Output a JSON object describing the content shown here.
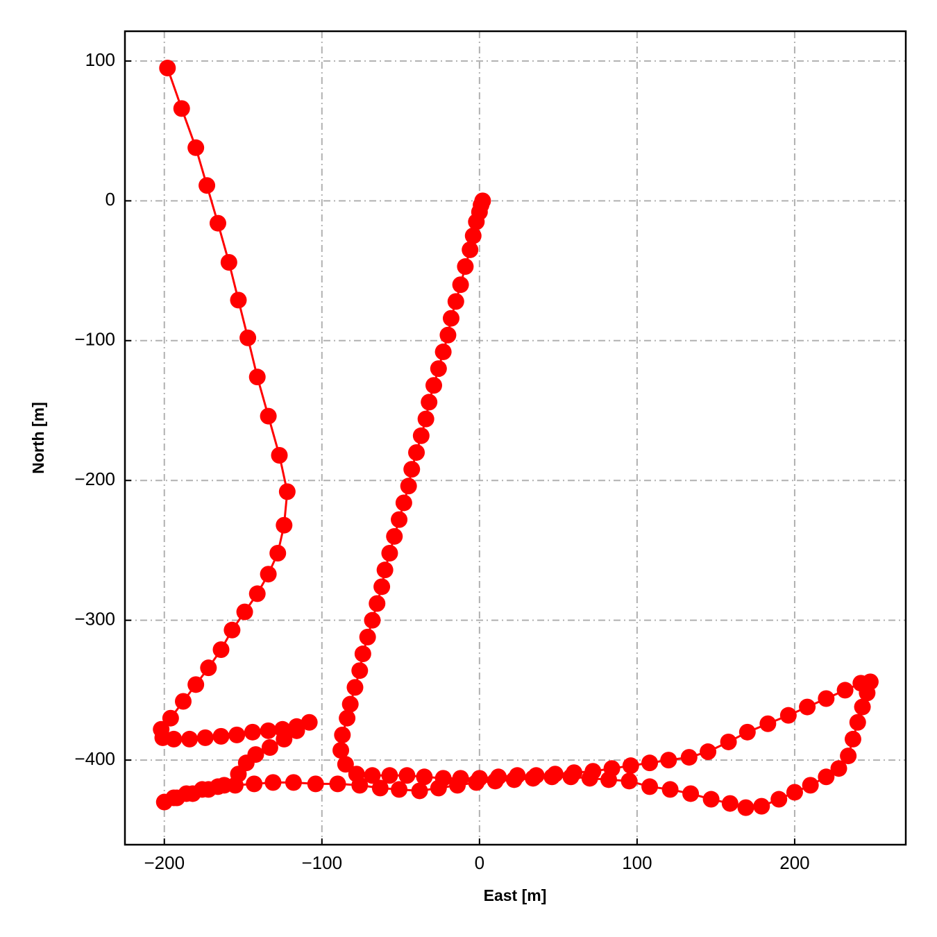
{
  "chart_data": {
    "type": "line",
    "x_label": "East [m]",
    "y_label": "North [m]",
    "color": "#ff0000",
    "markers": true,
    "grid": true,
    "xlim": [
      -225,
      270.5
    ],
    "ylim": [
      -460.5,
      121.3
    ],
    "xticks": [
      {
        "value": -200,
        "label": "−200"
      },
      {
        "value": -100,
        "label": "−100"
      },
      0,
      100,
      200
    ],
    "yticks": [
      100,
      0,
      {
        "value": -100,
        "label": "−100"
      },
      {
        "value": -200,
        "label": "−200"
      },
      {
        "value": -300,
        "label": "−300"
      },
      {
        "value": -400,
        "label": "−400"
      }
    ],
    "x": [
      2,
      1,
      0,
      -2,
      -4,
      -6,
      -9,
      -12,
      -15,
      -18,
      -20,
      -23,
      -26,
      -29,
      -32,
      -34,
      -37,
      -40,
      -43,
      -45,
      -48,
      -51,
      -54,
      -57,
      -60,
      -62,
      -65,
      -68,
      -71,
      -74,
      -76,
      -79,
      -82,
      -84,
      -87,
      -88,
      -85,
      -78,
      -68,
      -57,
      -46,
      -35,
      -23,
      -12,
      0,
      12,
      24,
      36,
      48,
      60,
      72,
      84,
      96,
      108,
      120,
      133,
      145,
      158,
      170,
      183,
      196,
      208,
      220,
      232,
      242,
      248,
      246,
      243,
      240,
      237,
      234,
      228,
      220,
      210,
      200,
      190,
      179,
      169,
      159,
      147,
      134,
      121,
      108,
      95,
      82,
      70,
      58,
      46,
      34,
      22,
      10,
      -2,
      -14,
      -26,
      -38,
      -51,
      -63,
      -76,
      -90,
      -104,
      -118,
      -131,
      -143,
      -155,
      -166,
      -176,
      -186,
      -194,
      -200,
      -192,
      -182,
      -172,
      -162,
      -153,
      -148,
      -142,
      -133,
      -124,
      -116,
      -108,
      -116,
      -125,
      -134,
      -144,
      -154,
      -164,
      -174,
      -184,
      -194,
      -201,
      -202,
      -196,
      -188,
      -180,
      -172,
      -164,
      -157,
      -149,
      -141,
      -134,
      -128,
      -124,
      -122,
      -127,
      -134,
      -141,
      -147,
      -153,
      -159,
      -166,
      -173,
      -180,
      -189,
      -198
    ],
    "values": [
      0,
      -3,
      -8,
      -15,
      -25,
      -35,
      -47,
      -60,
      -72,
      -84,
      -96,
      -108,
      -120,
      -132,
      -144,
      -156,
      -168,
      -180,
      -192,
      -204,
      -216,
      -228,
      -240,
      -252,
      -264,
      -276,
      -288,
      -300,
      -312,
      -324,
      -336,
      -348,
      -360,
      -370,
      -382,
      -393,
      -403,
      -410,
      -411,
      -411,
      -411,
      -412,
      -413,
      -413,
      -413,
      -412,
      -411,
      -411,
      -410,
      -409,
      -408,
      -406,
      -404,
      -402,
      -400,
      -398,
      -394,
      -387,
      -380,
      -374,
      -368,
      -362,
      -356,
      -350,
      -345,
      -344,
      -352,
      -362,
      -373,
      -385,
      -397,
      -406,
      -412,
      -418,
      -423,
      -428,
      -433,
      -434,
      -431,
      -428,
      -424,
      -421,
      -419,
      -415,
      -414,
      -413,
      -412,
      -412,
      -413,
      -414,
      -415,
      -416,
      -418,
      -420,
      -422,
      -421,
      -420,
      -418,
      -417,
      -417,
      -416,
      -416,
      -417,
      -418,
      -419,
      -421,
      -424,
      -427,
      -430,
      -427,
      -424,
      -421,
      -418,
      -410,
      -402,
      -396,
      -391,
      -385,
      -379,
      -373,
      -376,
      -378,
      -379,
      -380,
      -382,
      -383,
      -384,
      -385,
      -385,
      -384,
      -378,
      -370,
      -358,
      -346,
      -334,
      -321,
      -307,
      -294,
      -281,
      -267,
      -252,
      -232,
      -208,
      -182,
      -154,
      -126,
      -98,
      -71,
      -44,
      -16,
      11,
      38,
      66,
      95
    ]
  }
}
